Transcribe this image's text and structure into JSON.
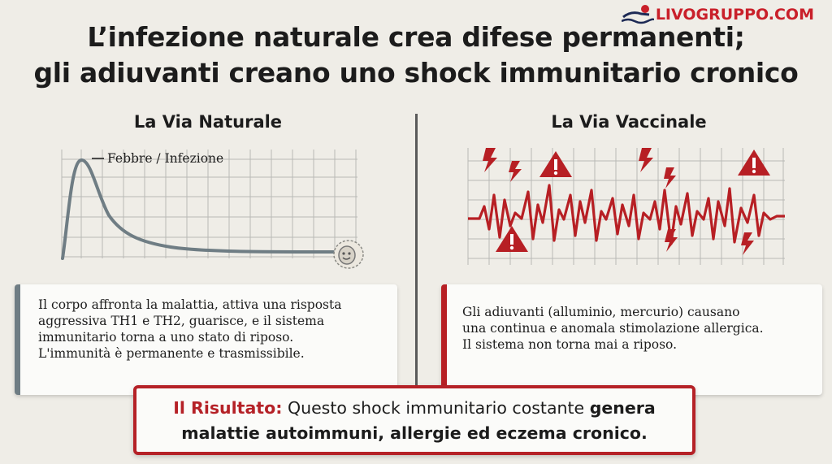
{
  "logo": {
    "text": "LIVOGRUPPO.COM"
  },
  "title": {
    "line1": "L’infezione naturale crea difese permanenti;",
    "line2": "gli adiuvanti creano uno shock immunitario cronico"
  },
  "left": {
    "heading": "La Via Naturale",
    "annotation": "Febbre / Infezione",
    "body": [
      "Il corpo affronta la malattia, attiva una risposta",
      "aggressiva TH1 e TH2, guarisce, e il sistema",
      "immunitario torna a uno stato di riposo.",
      "L'immunità è permanente e trasmissibile."
    ]
  },
  "right": {
    "heading": "La Via Vaccinale",
    "body": [
      "Gli adiuvanti (alluminio, mercurio) causano",
      "una continua e anomala stimolazione allergica.",
      "Il sistema non torna mai a riposo."
    ]
  },
  "result": {
    "label": "Il Risultato:",
    "text1": "Questo shock immunitario costante",
    "bold1": "genera",
    "line2": "malattie autoimmuni, allergie ed eczema cronico."
  },
  "colors": {
    "accent_red": "#b71f24",
    "neutral_gray": "#6f7d84",
    "background": "#efede7"
  }
}
